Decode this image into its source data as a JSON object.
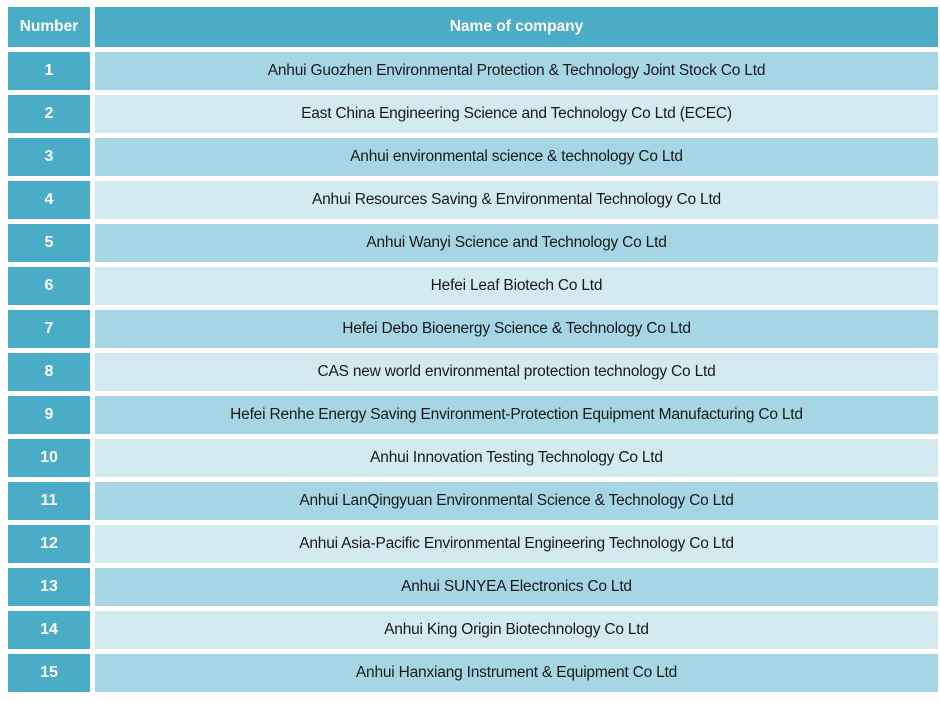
{
  "table": {
    "columns": [
      {
        "key": "number",
        "label": "Number"
      },
      {
        "key": "name",
        "label": "Name of company"
      }
    ],
    "rows": [
      {
        "number": "1",
        "name": "Anhui Guozhen Environmental Protection & Technology Joint Stock Co Ltd"
      },
      {
        "number": "2",
        "name": "East China Engineering Science and Technology Co Ltd (ECEC)"
      },
      {
        "number": "3",
        "name": "Anhui environmental science & technology Co Ltd"
      },
      {
        "number": "4",
        "name": "Anhui Resources Saving & Environmental Technology Co Ltd"
      },
      {
        "number": "5",
        "name": "Anhui Wanyi Science and Technology Co Ltd"
      },
      {
        "number": "6",
        "name": "Hefei Leaf Biotech Co Ltd"
      },
      {
        "number": "7",
        "name": "Hefei Debo Bioenergy Science & Technology Co Ltd"
      },
      {
        "number": "8",
        "name": "CAS new world environmental protection technology Co Ltd"
      },
      {
        "number": "9",
        "name": "Hefei Renhe Energy Saving Environment-Protection Equipment Manufacturing Co Ltd"
      },
      {
        "number": "10",
        "name": "Anhui Innovation Testing Technology Co Ltd"
      },
      {
        "number": "11",
        "name": "Anhui LanQingyuan Environmental Science & Technology Co Ltd"
      },
      {
        "number": "12",
        "name": "Anhui Asia-Pacific Environmental Engineering Technology Co Ltd"
      },
      {
        "number": "13",
        "name": "Anhui SUNYEA Electronics Co Ltd"
      },
      {
        "number": "14",
        "name": "Anhui King Origin Biotechnology Co Ltd"
      },
      {
        "number": "15",
        "name": "Anhui Hanxiang Instrument & Equipment Co Ltd"
      }
    ],
    "colors": {
      "header_bg": "#4AACC6",
      "header_text": "#FFFFFF",
      "row_odd_bg": "#A6D5E4",
      "row_even_bg": "#D3EAF1",
      "body_text": "#1A1A1A",
      "gridline_gap": "#FFFFFF"
    }
  }
}
